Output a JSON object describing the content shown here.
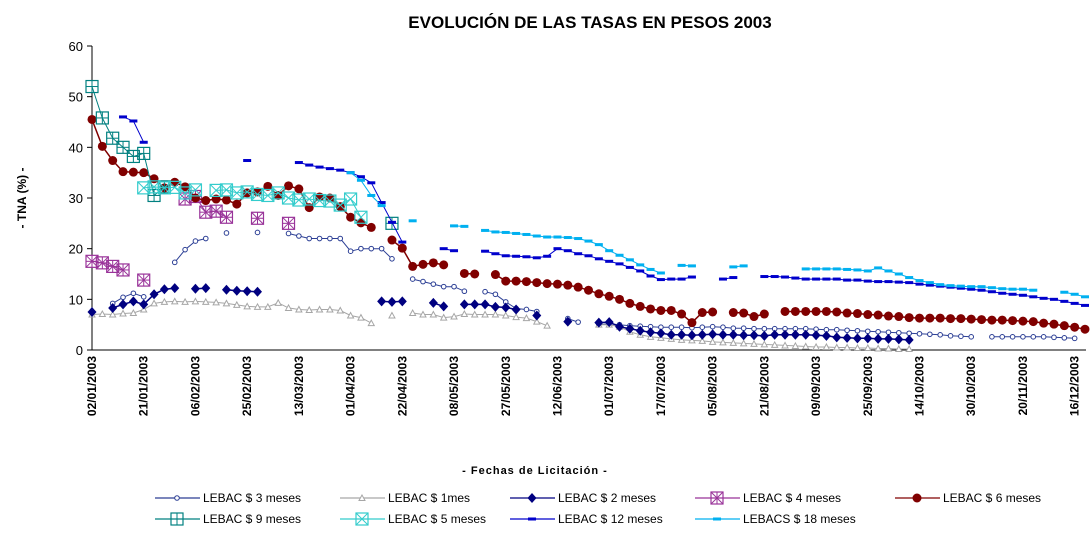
{
  "chart_data": {
    "type": "line",
    "title": "EVOLUCIÓN DE LAS TASAS EN PESOS 2003",
    "y_label": "- TNA (%) -",
    "x_label": "- Fechas de Licitación -",
    "ylim": [
      0,
      60
    ],
    "yticks": [
      0,
      10,
      20,
      30,
      40,
      50,
      60
    ],
    "grid": false,
    "legend": "bottom",
    "categories": [
      "02/01/2003",
      null,
      null,
      null,
      null,
      "21/01/2003",
      null,
      null,
      null,
      null,
      "06/02/2003",
      null,
      null,
      null,
      null,
      "25/02/2003",
      null,
      null,
      null,
      null,
      "13/03/2003",
      null,
      null,
      null,
      null,
      "01/04/2003",
      null,
      null,
      null,
      null,
      "22/04/2003",
      null,
      null,
      null,
      null,
      "08/05/2003",
      null,
      null,
      null,
      null,
      "27/05/2003",
      null,
      null,
      null,
      null,
      "12/06/2003",
      null,
      null,
      null,
      null,
      "01/07/2003",
      null,
      null,
      null,
      null,
      "17/07/2003",
      null,
      null,
      null,
      null,
      "05/08/2003",
      null,
      null,
      null,
      null,
      "21/08/2003",
      null,
      null,
      null,
      null,
      "09/09/2003",
      null,
      null,
      null,
      null,
      "25/09/2003",
      null,
      null,
      null,
      null,
      "14/10/2003",
      null,
      null,
      null,
      null,
      "30/10/2003",
      null,
      null,
      null,
      null,
      "20/11/2003",
      null,
      null,
      null,
      null,
      "16/12/2003",
      null
    ],
    "series": [
      {
        "name": "LEBAC $ 3 meses",
        "color": "#2c3f95",
        "marker": "circle-open",
        "values": [
          null,
          null,
          9.2,
          10.4,
          11.2,
          10.5,
          null,
          null,
          17.3,
          19.8,
          21.5,
          22,
          null,
          23.1,
          null,
          null,
          23.2,
          null,
          null,
          23,
          22.5,
          22,
          22,
          22,
          22,
          19.5,
          20,
          20,
          20,
          18,
          null,
          14,
          13.5,
          13,
          12.5,
          12.5,
          11.6,
          null,
          11.5,
          11,
          9.5,
          8.2,
          8,
          7.6,
          null,
          null,
          6.2,
          5.5,
          null,
          5,
          5.2,
          5,
          4.8,
          4.7,
          4.6,
          4.5,
          4.5,
          4.5,
          4.4,
          4.5,
          4.6,
          4.5,
          4.3,
          4.3,
          4.2,
          4.2,
          4.2,
          4.2,
          4.2,
          4.2,
          4.1,
          4,
          4,
          3.9,
          3.8,
          3.7,
          3.6,
          3.5,
          3.4,
          3.3,
          3.2,
          3.1,
          3,
          2.8,
          2.7,
          2.6,
          null,
          2.6,
          2.6,
          2.6,
          2.6,
          2.6,
          2.6,
          2.5,
          2.4,
          2.3,
          null
        ]
      },
      {
        "name": "LEBAC $ 1mes",
        "color": "#a6a6a6",
        "marker": "triangle-open",
        "values": [
          7,
          7.1,
          7,
          7.2,
          7.3,
          8,
          9.2,
          9.5,
          9.6,
          9.5,
          9.6,
          9.5,
          9.4,
          9.2,
          8.9,
          8.6,
          8.5,
          8.5,
          9.3,
          8.3,
          8,
          7.9,
          8,
          8,
          7.8,
          6.8,
          6.4,
          5.3,
          null,
          6.8,
          null,
          7.3,
          7,
          7,
          6.4,
          6.6,
          7.1,
          7,
          7,
          7,
          6.8,
          6.5,
          6.3,
          5.6,
          4.8,
          null,
          null,
          null,
          null,
          5,
          5,
          4.6,
          3.6,
          3,
          2.6,
          2.4,
          2.2,
          2,
          1.9,
          1.8,
          1.6,
          1.5,
          1.4,
          1.3,
          1.2,
          1.1,
          1,
          0.9,
          0.8,
          0.7,
          0.6,
          0.6,
          0.5,
          0.5,
          0.4,
          0.4,
          0.3,
          0.3,
          0.2,
          0.2,
          null,
          null,
          null,
          null,
          null,
          null,
          null,
          null,
          null,
          null,
          null,
          null,
          null,
          null,
          null,
          null,
          null
        ]
      },
      {
        "name": "LEBAC $ 2 meses",
        "color": "#000080",
        "marker": "diamond",
        "values": [
          7.5,
          null,
          8.3,
          9,
          9.6,
          9,
          11,
          12,
          12.2,
          null,
          12.1,
          12.2,
          null,
          11.9,
          11.7,
          11.6,
          11.5,
          null,
          null,
          null,
          null,
          null,
          null,
          null,
          null,
          null,
          null,
          null,
          9.6,
          9.5,
          9.6,
          null,
          null,
          9.3,
          8.6,
          null,
          9,
          9,
          9,
          8.5,
          8.4,
          8,
          null,
          6.8,
          null,
          null,
          5.6,
          null,
          null,
          5.4,
          5.5,
          4.6,
          4.2,
          3.8,
          3.5,
          3.3,
          3,
          3,
          2.9,
          3,
          3.1,
          3,
          3,
          2.9,
          2.9,
          2.8,
          3,
          3,
          3,
          3,
          2.9,
          2.8,
          2.5,
          2.4,
          2.3,
          2.3,
          2.2,
          2.2,
          2.1,
          2,
          null,
          null,
          null,
          null,
          null,
          null,
          null,
          null,
          null,
          null,
          null,
          null,
          null,
          null,
          null,
          null,
          null
        ]
      },
      {
        "name": "LEBAC $ 4 meses",
        "color": "#993399",
        "marker": "box-star",
        "values": [
          17.5,
          17.2,
          16.5,
          15.8,
          null,
          13.8,
          null,
          null,
          null,
          29.8,
          30.3,
          27.2,
          27.4,
          26.2,
          null,
          null,
          26,
          null,
          null,
          25,
          null,
          null,
          null,
          null,
          null,
          null,
          null,
          null,
          null,
          null,
          null,
          null,
          null,
          null,
          null,
          null,
          null,
          null,
          null,
          null,
          null,
          null,
          null,
          null,
          null,
          null,
          null,
          null,
          null,
          null,
          null,
          null,
          null,
          null,
          null,
          null,
          null,
          null,
          null,
          null,
          null,
          null,
          null,
          null,
          null,
          null,
          null,
          null,
          null,
          null,
          null,
          null,
          null,
          null,
          null,
          null,
          null,
          null,
          null,
          null,
          null,
          null,
          null,
          null,
          null,
          null,
          null,
          null,
          null,
          null,
          null,
          null,
          null,
          null,
          null,
          null,
          null
        ]
      },
      {
        "name": "LEBAC $ 6 meses",
        "color": "#800000",
        "marker": "circle",
        "values": [
          45.5,
          40.2,
          37.4,
          35.2,
          35.1,
          35,
          33.8,
          32,
          33.1,
          32.2,
          30,
          29.5,
          29.8,
          29.6,
          28.8,
          31,
          31.2,
          32.3,
          30.5,
          32.4,
          31.8,
          28.1,
          30.2,
          30,
          28.3,
          26.2,
          25.1,
          24.2,
          null,
          21.7,
          20.1,
          16.5,
          16.9,
          17.2,
          16.8,
          null,
          15.1,
          15,
          null,
          14.9,
          13.6,
          13.6,
          13.5,
          13.3,
          13.1,
          13,
          12.8,
          12.4,
          11.8,
          11.1,
          10.6,
          10,
          9.2,
          8.6,
          8.1,
          7.8,
          7.8,
          7.1,
          5.4,
          7.4,
          7.5,
          null,
          7.4,
          7.3,
          6.6,
          7.1,
          null,
          7.6,
          7.6,
          7.6,
          7.6,
          7.6,
          7.5,
          7.3,
          7.2,
          7,
          6.9,
          6.7,
          6.6,
          6.4,
          6.3,
          6.3,
          6.3,
          6.2,
          6.2,
          6.1,
          6,
          5.9,
          5.9,
          5.8,
          5.7,
          5.6,
          5.3,
          5.1,
          4.8,
          4.5,
          4.1
        ]
      },
      {
        "name": "LEBAC $ 9 meses",
        "color": "#008080",
        "marker": "box-plus",
        "values": [
          52,
          45.8,
          41.8,
          40,
          38.2,
          38.8,
          30.5,
          32.2,
          null,
          null,
          null,
          null,
          null,
          null,
          null,
          null,
          null,
          null,
          null,
          null,
          null,
          null,
          null,
          null,
          null,
          null,
          null,
          null,
          null,
          25,
          null,
          null,
          null,
          null,
          null,
          null,
          null,
          null,
          null,
          null,
          null,
          null,
          null,
          null,
          null,
          null,
          null,
          null,
          null,
          null,
          null,
          null,
          null,
          null,
          null,
          null,
          null,
          null,
          null,
          null,
          null,
          null,
          null,
          null,
          null,
          null,
          null,
          null,
          null,
          null,
          null,
          null,
          null,
          null,
          null,
          null,
          null,
          null,
          null,
          null,
          null,
          null,
          null,
          null,
          null,
          null,
          null,
          null,
          null,
          null,
          null,
          null,
          null,
          null,
          null,
          null,
          null
        ]
      },
      {
        "name": "LEBAC $ 5 meses",
        "color": "#33cccc",
        "marker": "box-x",
        "values": [
          null,
          null,
          null,
          null,
          null,
          32,
          32.2,
          32,
          32.1,
          31,
          31.6,
          null,
          31.5,
          31.6,
          31,
          31.2,
          30.7,
          30.5,
          31,
          30,
          29.6,
          29.8,
          29.5,
          29.4,
          28.6,
          29.8,
          26.2,
          null,
          null,
          null,
          null,
          null,
          null,
          null,
          null,
          null,
          null,
          null,
          null,
          null,
          null,
          null,
          null,
          null,
          null,
          null,
          null,
          null,
          null,
          null,
          null,
          null,
          null,
          null,
          null,
          null,
          null,
          null,
          null,
          null,
          null,
          null,
          null,
          null,
          null,
          null,
          null,
          null,
          null,
          null,
          null,
          null,
          null,
          null,
          null,
          null,
          null,
          null,
          null,
          null,
          null,
          null,
          null,
          null,
          null,
          null,
          null,
          null,
          null,
          null,
          null,
          null,
          null,
          null,
          null,
          null,
          null
        ]
      },
      {
        "name": "LEBAC $ 12 meses",
        "color": "#0000cc",
        "marker": "dash",
        "values": [
          null,
          null,
          null,
          46,
          45.2,
          41,
          null,
          null,
          null,
          null,
          null,
          null,
          null,
          null,
          null,
          37.4,
          null,
          null,
          null,
          null,
          37,
          36.5,
          36.1,
          35.8,
          35.5,
          35,
          34.2,
          33,
          29.1,
          25.2,
          21.3,
          null,
          null,
          null,
          20,
          19.6,
          null,
          null,
          19.5,
          19,
          18.6,
          18.5,
          18.4,
          18.2,
          18.5,
          20,
          19.6,
          19,
          18.6,
          18,
          17.5,
          17,
          16.3,
          15.6,
          14.6,
          13.9,
          14,
          14,
          14.4,
          null,
          null,
          14,
          14.3,
          null,
          null,
          14.5,
          14.5,
          14.4,
          14.2,
          14,
          14,
          14,
          14,
          13.8,
          13.8,
          13.6,
          13.5,
          13.5,
          13.4,
          13.3,
          13,
          12.8,
          12.6,
          12.4,
          12.2,
          12,
          11.8,
          11.5,
          11.2,
          11,
          10.8,
          10.5,
          10.2,
          10,
          9.6,
          9.2,
          8.8
        ]
      },
      {
        "name": "LEBACS $ 18 meses",
        "color": "#00b0f0",
        "marker": "dash",
        "values": [
          null,
          null,
          null,
          null,
          null,
          null,
          null,
          null,
          null,
          null,
          null,
          null,
          null,
          null,
          null,
          null,
          null,
          null,
          null,
          null,
          null,
          null,
          null,
          null,
          null,
          35,
          33.5,
          30.5,
          28.5,
          null,
          null,
          25.5,
          null,
          null,
          null,
          24.5,
          24.4,
          null,
          23.6,
          23.3,
          23.2,
          23,
          22.8,
          22.5,
          22.3,
          22.3,
          22.2,
          22,
          21.5,
          20.8,
          19.6,
          18.7,
          17.8,
          16.8,
          15.9,
          15.2,
          null,
          16.7,
          16.6,
          null,
          null,
          null,
          16.4,
          16.6,
          null,
          null,
          null,
          null,
          null,
          16,
          16,
          16,
          16,
          15.9,
          15.8,
          15.6,
          16.2,
          15.6,
          15,
          14.3,
          13.7,
          13.3,
          12.9,
          12.7,
          12.6,
          12.5,
          12.5,
          12.3,
          12.1,
          12,
          12,
          11.8,
          null,
          null,
          11.4,
          11,
          10.5
        ]
      }
    ]
  }
}
